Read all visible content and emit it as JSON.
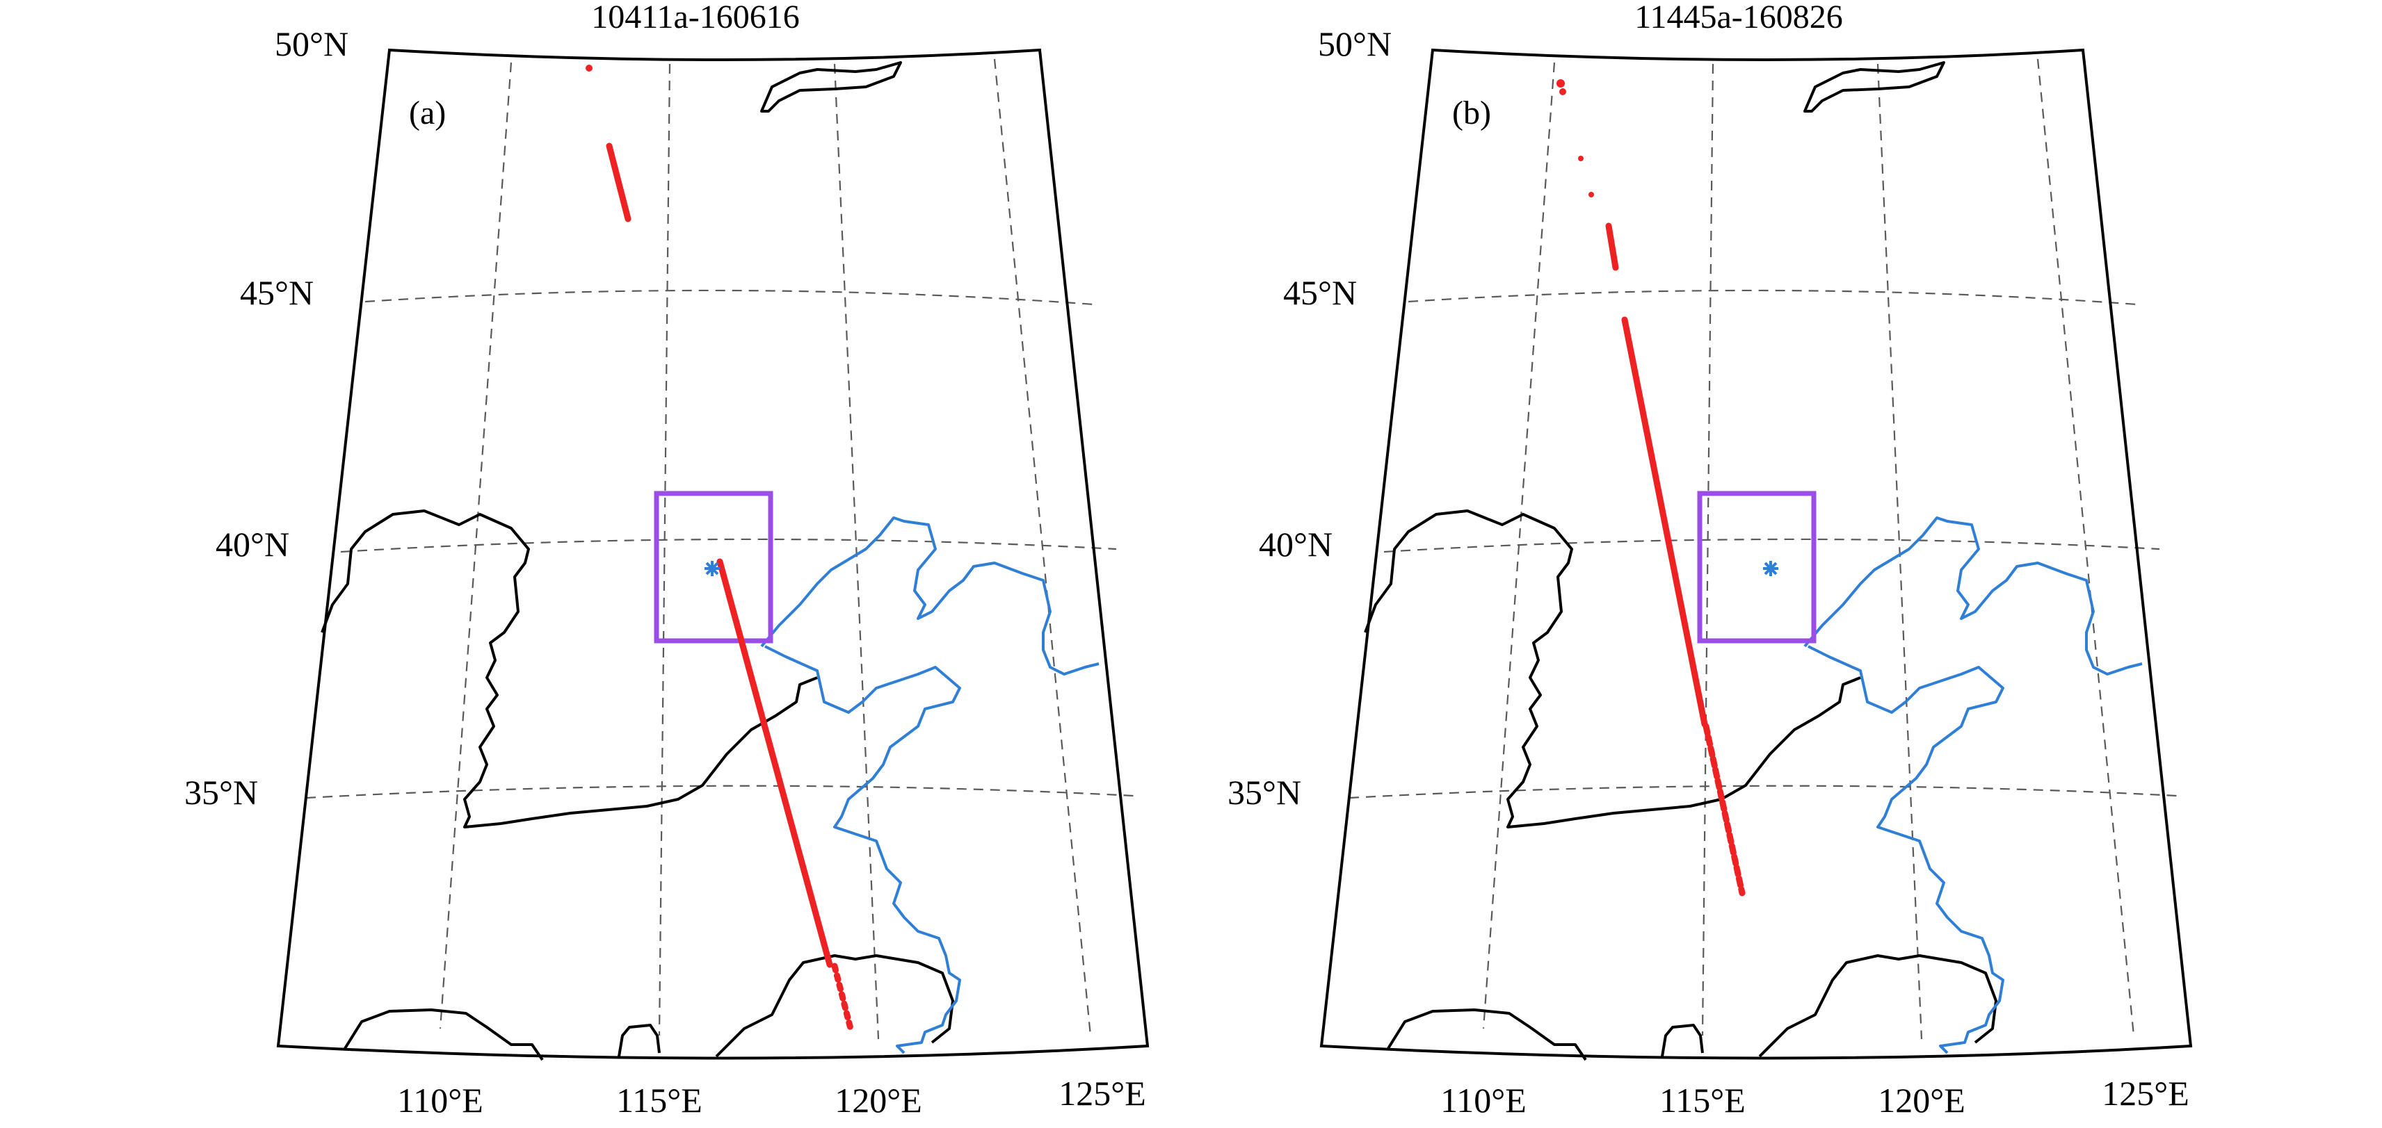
{
  "panels": [
    {
      "id": "a",
      "title": "10411a-160616",
      "panel_label": "(a)",
      "lat_labels": [
        "50°N",
        "45°N",
        "40°N",
        "35°N"
      ],
      "lon_labels": [
        "110°E",
        "115°E",
        "120°E",
        "125°E"
      ]
    },
    {
      "id": "b",
      "title": "11445a-160826",
      "panel_label": "(b)",
      "lat_labels": [
        "50°N",
        "45°N",
        "40°N",
        "35°N"
      ],
      "lon_labels": [
        "110°E",
        "115°E",
        "120°E",
        "125°E"
      ]
    }
  ],
  "colors": {
    "track": "#ee2222",
    "study_box": "#9b4de8",
    "coast_blue": "#2f7fd6",
    "star": "#2f7fd6",
    "grid": "#5a5a5a"
  }
}
